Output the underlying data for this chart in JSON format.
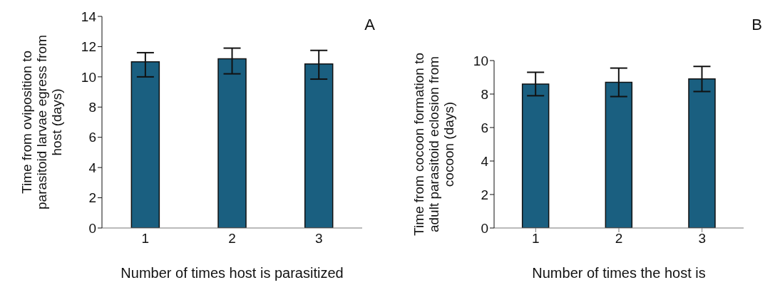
{
  "chart_data": [
    {
      "type": "bar",
      "categories": [
        "1",
        "2",
        "3"
      ],
      "xlabel": "Number of times host is parasitized",
      "ylabel": "Time from oviposition to\nparasitoid larvae egress from\nhost (days)",
      "annotations": [
        "A"
      ],
      "series": [
        {
          "color": "#1a5f80",
          "values": [
            11.0,
            11.2,
            10.85
          ],
          "errors": [
            [
              10.0,
              11.6
            ],
            [
              10.2,
              11.9
            ],
            [
              9.85,
              11.75
            ]
          ]
        }
      ],
      "ylim": [
        0,
        14
      ],
      "yticks": [
        0,
        2,
        4,
        6,
        8,
        10,
        12,
        14
      ],
      "grid": false,
      "legend": false
    },
    {
      "type": "bar",
      "categories": [
        "1",
        "2",
        "3"
      ],
      "xlabel": "Number of times the host is",
      "ylabel": "Time from cocoon formation to\nadult parasitoid eclosion from\ncocoon (days)",
      "annotations": [
        "B"
      ],
      "series": [
        {
          "color": "#1a5f80",
          "values": [
            8.6,
            8.7,
            8.9
          ],
          "errors": [
            [
              7.9,
              9.3
            ],
            [
              7.85,
              9.55
            ],
            [
              8.15,
              9.65
            ]
          ]
        }
      ],
      "ylim": [
        0,
        10
      ],
      "yticks": [
        0,
        2,
        4,
        6,
        8,
        10
      ],
      "grid": false,
      "legend": false
    }
  ]
}
